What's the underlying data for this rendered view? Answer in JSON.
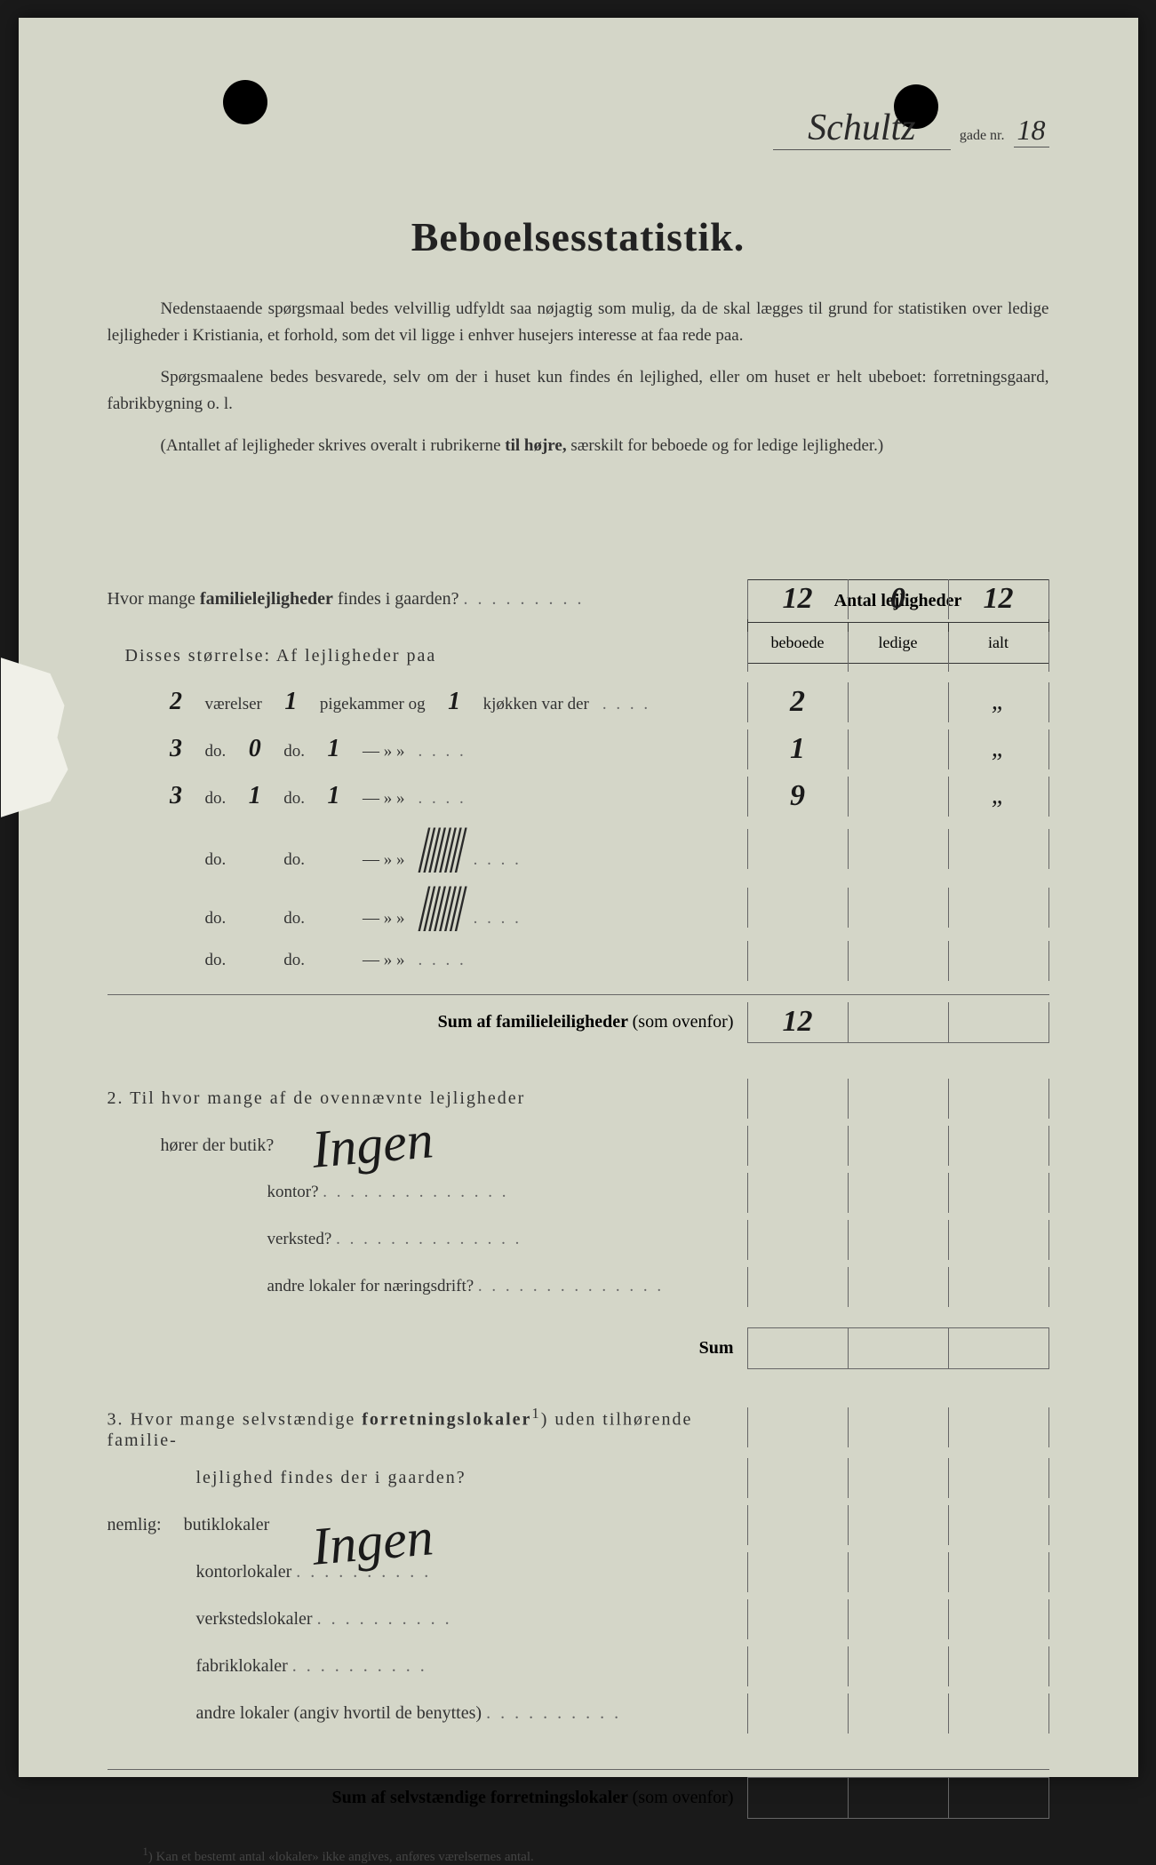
{
  "header": {
    "street_name": "Schultz",
    "gade_label": "gade nr.",
    "gade_nr": "18"
  },
  "title": "Beboelsesstatistik.",
  "intro": {
    "p1": "Nedenstaaende spørgsmaal bedes velvillig udfyldt saa nøjagtig som mulig, da de skal lægges til grund for statistiken over ledige lejligheder i Kristiania, et forhold, som det vil ligge i enhver husejers interesse at faa rede paa.",
    "p2": "Spørgsmaalene bedes besvarede, selv om der i huset kun findes én lejlighed, eller om huset er helt ubeboet: forretningsgaard, fabrikbygning o. l.",
    "p3_prefix": "(Antallet af lejligheder skrives overalt i rubrikerne",
    "p3_bold": "til højre,",
    "p3_suffix": "særskilt for beboede og for ledige lejligheder.)"
  },
  "table": {
    "header_title": "Antal lejligheder",
    "col1": "beboede",
    "col2": "ledige",
    "col3": "ialt"
  },
  "q1": {
    "text_prefix": "Hvor mange",
    "text_bold": "familielejligheder",
    "text_suffix": "findes i gaarden?",
    "dots": ". . . . . . . . .",
    "beboede": "12",
    "ledige": "0",
    "ialt": "12"
  },
  "sizes_heading": "Disses størrelse:   Af lejligheder paa",
  "size_labels": {
    "vaerelser": "værelser",
    "pigekammer": "pigekammer og",
    "kjokken": "kjøkken var der",
    "do": "do.",
    "dash": "—",
    "quote": "»  »"
  },
  "sizes": [
    {
      "v": "2",
      "p": "1",
      "k": "1",
      "beboede": "2",
      "ledige": "",
      "ialt": "„"
    },
    {
      "v": "3",
      "p": "0",
      "k": "1",
      "beboede": "1",
      "ledige": "",
      "ialt": "„"
    },
    {
      "v": "3",
      "p": "1",
      "k": "1",
      "beboede": "9",
      "ledige": "",
      "ialt": "„"
    },
    {
      "v": "",
      "p": "",
      "k": "",
      "beboede": "",
      "ledige": "",
      "ialt": ""
    },
    {
      "v": "",
      "p": "",
      "k": "",
      "beboede": "",
      "ledige": "",
      "ialt": ""
    },
    {
      "v": "",
      "p": "",
      "k": "",
      "beboede": "",
      "ledige": "",
      "ialt": ""
    }
  ],
  "scribble_text": "/////",
  "sum1": {
    "label_bold": "Sum af familieleiligheder",
    "label_normal": "(som ovenfor)",
    "beboede": "12",
    "ledige": "",
    "ialt": ""
  },
  "q2": {
    "line1": "2.  Til hvor mange af de ovennævnte lejligheder",
    "line2_prefix": "hører der butik?",
    "items": [
      "kontor?",
      "verksted?",
      "andre lokaler for næringsdrift?"
    ],
    "handwritten": "Ingen",
    "sum_label": "Sum"
  },
  "q3": {
    "line1_prefix": "3.  Hvor mange selvstændige",
    "line1_bold": "forretningslokaler",
    "line1_sup": "1",
    "line1_suffix": ") uden tilhørende familie-",
    "line2": "lejlighed findes der i gaarden?",
    "nemlig": "nemlig:",
    "items": [
      "butiklokaler",
      "kontorlokaler",
      "verkstedslokaler",
      "fabriklokaler",
      "andre lokaler (angiv hvortil de benyttes)"
    ],
    "handwritten": "Ingen",
    "sum_bold": "Sum af selvstændige forretningslokaler",
    "sum_normal": "(som ovenfor)"
  },
  "footnote": {
    "sup": "1",
    "text": ")  Kan et bestemt antal «lokaler» ikke angives, anføres værelsernes antal."
  },
  "colors": {
    "paper": "#d4d6c8",
    "text": "#333333",
    "ink": "#1a1a1a",
    "border": "#666666"
  }
}
